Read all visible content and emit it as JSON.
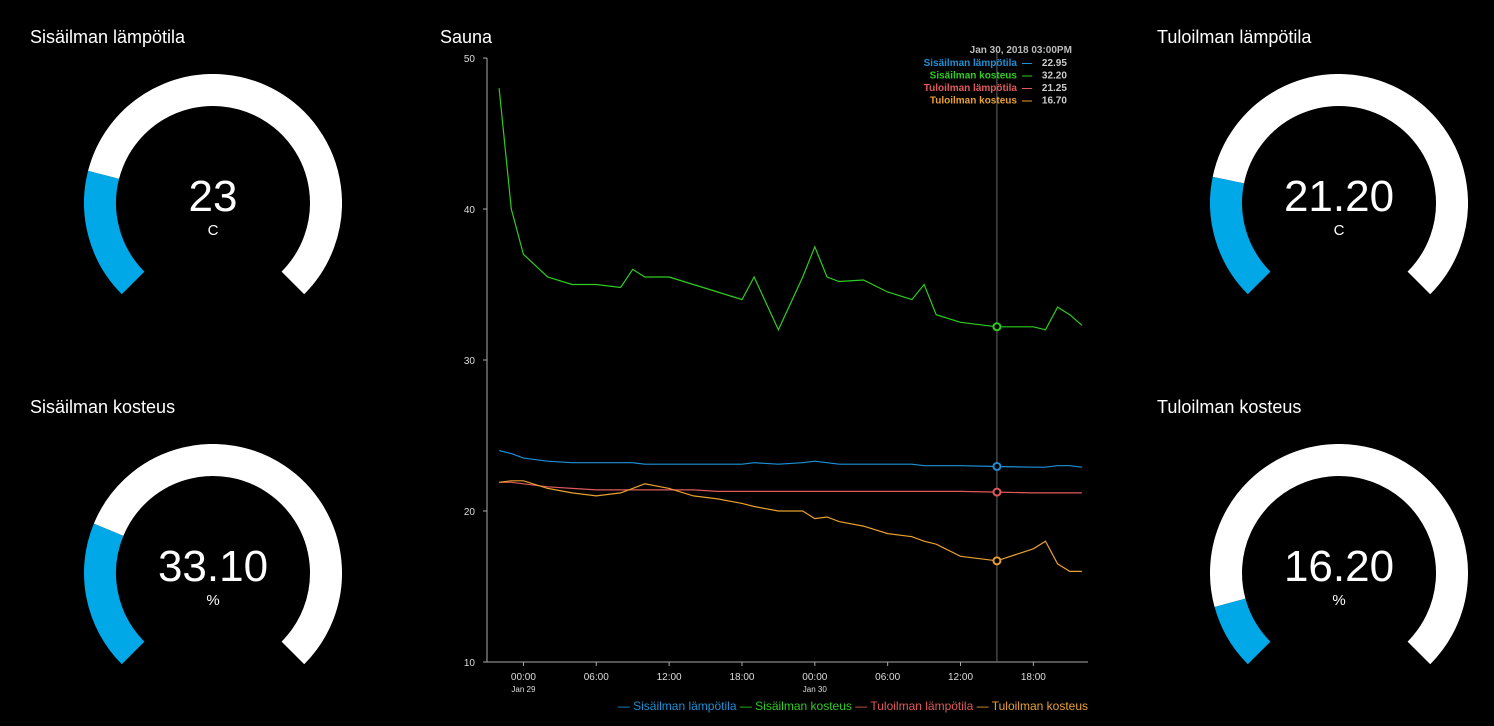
{
  "gauges": [
    {
      "title": "Sisäilman lämpötila",
      "value": "23",
      "unit": "C",
      "fraction": 0.22
    },
    {
      "title": "Sisäilman kosteus",
      "value": "33.10",
      "unit": "%",
      "fraction": 0.25
    },
    {
      "title": "Tuloilman lämpötila",
      "value": "21.20",
      "unit": "C",
      "fraction": 0.21
    },
    {
      "title": "Tuloilman kosteus",
      "value": "16.20",
      "unit": "%",
      "fraction": 0.11
    }
  ],
  "colors": {
    "gauge_fill": "#00a8e8",
    "gauge_track": "#ffffff",
    "crosshair": "#666666"
  },
  "chart_data": {
    "type": "line",
    "title": "Sauna",
    "ylim": [
      10,
      50
    ],
    "yticks": [
      10,
      20,
      30,
      40,
      50
    ],
    "xrange": [
      "2018-01-28T21:00",
      "2018-01-30T22:30"
    ],
    "xticks": [
      {
        "t": "2018-01-29T00:00",
        "label": "00:00",
        "sub": "Jan 29"
      },
      {
        "t": "2018-01-29T06:00",
        "label": "06:00",
        "sub": ""
      },
      {
        "t": "2018-01-29T12:00",
        "label": "12:00",
        "sub": ""
      },
      {
        "t": "2018-01-29T18:00",
        "label": "18:00",
        "sub": ""
      },
      {
        "t": "2018-01-30T00:00",
        "label": "00:00",
        "sub": "Jan 30"
      },
      {
        "t": "2018-01-30T06:00",
        "label": "06:00",
        "sub": ""
      },
      {
        "t": "2018-01-30T12:00",
        "label": "12:00",
        "sub": ""
      },
      {
        "t": "2018-01-30T18:00",
        "label": "18:00",
        "sub": ""
      }
    ],
    "x": [
      "2018-01-28T22:00",
      "2018-01-28T23:00",
      "2018-01-29T00:00",
      "2018-01-29T02:00",
      "2018-01-29T04:00",
      "2018-01-29T06:00",
      "2018-01-29T08:00",
      "2018-01-29T09:00",
      "2018-01-29T10:00",
      "2018-01-29T12:00",
      "2018-01-29T14:00",
      "2018-01-29T16:00",
      "2018-01-29T18:00",
      "2018-01-29T19:00",
      "2018-01-29T21:00",
      "2018-01-29T23:00",
      "2018-01-30T00:00",
      "2018-01-30T01:00",
      "2018-01-30T02:00",
      "2018-01-30T04:00",
      "2018-01-30T06:00",
      "2018-01-30T08:00",
      "2018-01-30T09:00",
      "2018-01-30T10:00",
      "2018-01-30T12:00",
      "2018-01-30T15:00",
      "2018-01-30T18:00",
      "2018-01-30T19:00",
      "2018-01-30T20:00",
      "2018-01-30T21:00",
      "2018-01-30T22:00"
    ],
    "series": [
      {
        "name": "Sisäilman lämpötila",
        "color": "#1e90d6",
        "values": [
          24.0,
          23.8,
          23.5,
          23.3,
          23.2,
          23.2,
          23.2,
          23.2,
          23.1,
          23.1,
          23.1,
          23.1,
          23.1,
          23.2,
          23.1,
          23.2,
          23.3,
          23.2,
          23.1,
          23.1,
          23.1,
          23.1,
          23.0,
          23.0,
          23.0,
          22.95,
          22.9,
          22.9,
          23.0,
          23.0,
          22.9
        ]
      },
      {
        "name": "Sisäilman kosteus",
        "color": "#2ecc1e",
        "values": [
          48.0,
          40.0,
          37.0,
          35.5,
          35.0,
          35.0,
          34.8,
          36.0,
          35.5,
          35.5,
          35.0,
          34.5,
          34.0,
          35.5,
          32.0,
          35.5,
          37.5,
          35.5,
          35.2,
          35.3,
          34.5,
          34.0,
          35.0,
          33.0,
          32.5,
          32.2,
          32.2,
          32.0,
          33.5,
          33.0,
          32.3
        ]
      },
      {
        "name": "Tuloilman lämpötila",
        "color": "#e05a5a",
        "values": [
          21.9,
          21.9,
          21.8,
          21.6,
          21.5,
          21.4,
          21.4,
          21.4,
          21.4,
          21.4,
          21.4,
          21.3,
          21.3,
          21.3,
          21.3,
          21.3,
          21.3,
          21.3,
          21.3,
          21.3,
          21.3,
          21.3,
          21.3,
          21.3,
          21.3,
          21.25,
          21.2,
          21.2,
          21.2,
          21.2,
          21.2
        ]
      },
      {
        "name": "Tuloilman kosteus",
        "color": "#e8a030",
        "values": [
          21.9,
          22.0,
          22.0,
          21.5,
          21.2,
          21.0,
          21.2,
          21.5,
          21.8,
          21.5,
          21.0,
          20.8,
          20.5,
          20.3,
          20.0,
          20.0,
          19.5,
          19.6,
          19.3,
          19.0,
          18.5,
          18.3,
          18.0,
          17.8,
          17.0,
          16.7,
          17.5,
          18.0,
          16.5,
          16.0,
          16.0
        ]
      }
    ],
    "tooltip": {
      "time": "Jan 30, 2018  03:00PM",
      "t": "2018-01-30T15:00",
      "items": [
        {
          "name": "Sisäilman lämpötila",
          "value": "22.95"
        },
        {
          "name": "Sisäilman kosteus",
          "value": "32.20"
        },
        {
          "name": "Tuloilman lämpötila",
          "value": "21.25"
        },
        {
          "name": "Tuloilman kosteus",
          "value": "16.70"
        }
      ]
    },
    "legend_position": "bottom-right",
    "grid": false
  }
}
